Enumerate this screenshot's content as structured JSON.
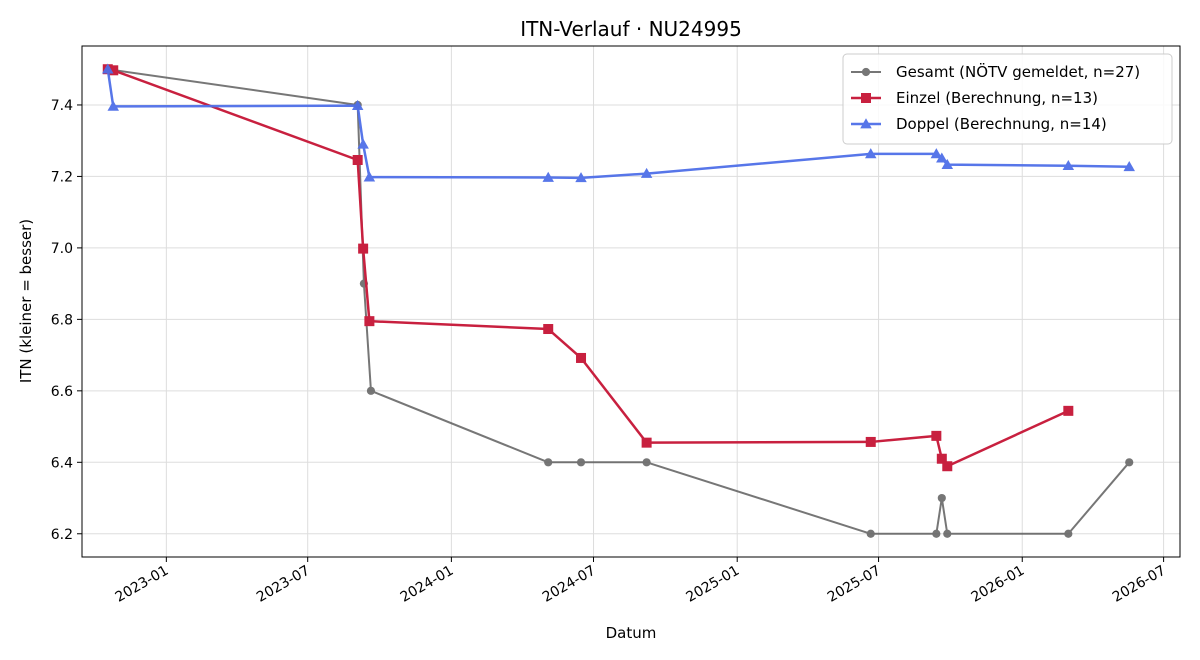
{
  "chart_data": {
    "type": "line",
    "title": "ITN-Verlauf · NU24995",
    "xlabel": "Datum",
    "ylabel": "ITN  (kleiner = besser)",
    "x_axis_type": "date",
    "xlim": [
      "2022-09-15",
      "2026-07-22"
    ],
    "ylim": [
      6.135,
      7.565
    ],
    "x_ticks": [
      "2023-01-01",
      "2023-07-01",
      "2024-01-01",
      "2024-07-01",
      "2025-01-01",
      "2025-07-01",
      "2026-01-01",
      "2026-07-01"
    ],
    "x_tick_labels": [
      "2023-01",
      "2023-07",
      "2024-01",
      "2024-07",
      "2025-01",
      "2025-07",
      "2026-01",
      "2026-07"
    ],
    "y_ticks": [
      6.2,
      6.4,
      6.6,
      6.8,
      7.0,
      7.2,
      7.4
    ],
    "y_tick_labels": [
      "6.2",
      "6.4",
      "6.6",
      "6.8",
      "7.0",
      "7.2",
      "7.4"
    ],
    "grid": true,
    "legend_position": "top-right",
    "series": [
      {
        "name": "Gesamt (NÖTV gemeldet, n=27)",
        "color": "#555555",
        "marker": "circle",
        "points": [
          {
            "x": "2022-10-18",
            "y": 7.5
          },
          {
            "x": "2023-09-03",
            "y": 7.4
          },
          {
            "x": "2023-09-11",
            "y": 6.9
          },
          {
            "x": "2023-09-20",
            "y": 6.6
          },
          {
            "x": "2024-05-04",
            "y": 6.4
          },
          {
            "x": "2024-06-15",
            "y": 6.4
          },
          {
            "x": "2024-09-07",
            "y": 6.4
          },
          {
            "x": "2025-06-21",
            "y": 6.2
          },
          {
            "x": "2025-09-13",
            "y": 6.2
          },
          {
            "x": "2025-09-20",
            "y": 6.3
          },
          {
            "x": "2025-09-27",
            "y": 6.2
          },
          {
            "x": "2026-03-01",
            "y": 6.2
          },
          {
            "x": "2026-05-18",
            "y": 6.4
          }
        ]
      },
      {
        "name": "Einzel (Berechnung, n=13)",
        "color": "#c8203f",
        "marker": "square",
        "points": [
          {
            "x": "2022-10-18",
            "y": 7.5
          },
          {
            "x": "2022-10-25",
            "y": 7.497
          },
          {
            "x": "2023-09-03",
            "y": 7.246
          },
          {
            "x": "2023-09-10",
            "y": 6.998
          },
          {
            "x": "2023-09-18",
            "y": 6.795
          },
          {
            "x": "2024-05-04",
            "y": 6.773
          },
          {
            "x": "2024-06-15",
            "y": 6.692
          },
          {
            "x": "2024-09-07",
            "y": 6.455
          },
          {
            "x": "2025-06-21",
            "y": 6.457
          },
          {
            "x": "2025-09-13",
            "y": 6.474
          },
          {
            "x": "2025-09-20",
            "y": 6.41
          },
          {
            "x": "2025-09-27",
            "y": 6.389
          },
          {
            "x": "2026-03-01",
            "y": 6.544
          }
        ]
      },
      {
        "name": "Doppel (Berechnung, n=14)",
        "color": "#4f6fe8",
        "marker": "triangle",
        "points": [
          {
            "x": "2022-10-18",
            "y": 7.5
          },
          {
            "x": "2022-10-25",
            "y": 7.396
          },
          {
            "x": "2023-09-03",
            "y": 7.398
          },
          {
            "x": "2023-09-10",
            "y": 7.29
          },
          {
            "x": "2023-09-18",
            "y": 7.198
          },
          {
            "x": "2024-05-04",
            "y": 7.197
          },
          {
            "x": "2024-06-15",
            "y": 7.196
          },
          {
            "x": "2024-09-07",
            "y": 7.208
          },
          {
            "x": "2025-06-21",
            "y": 7.263
          },
          {
            "x": "2025-09-13",
            "y": 7.263
          },
          {
            "x": "2025-09-20",
            "y": 7.251
          },
          {
            "x": "2025-09-27",
            "y": 7.233
          },
          {
            "x": "2026-03-01",
            "y": 7.23
          },
          {
            "x": "2026-05-18",
            "y": 7.227
          }
        ]
      }
    ]
  }
}
